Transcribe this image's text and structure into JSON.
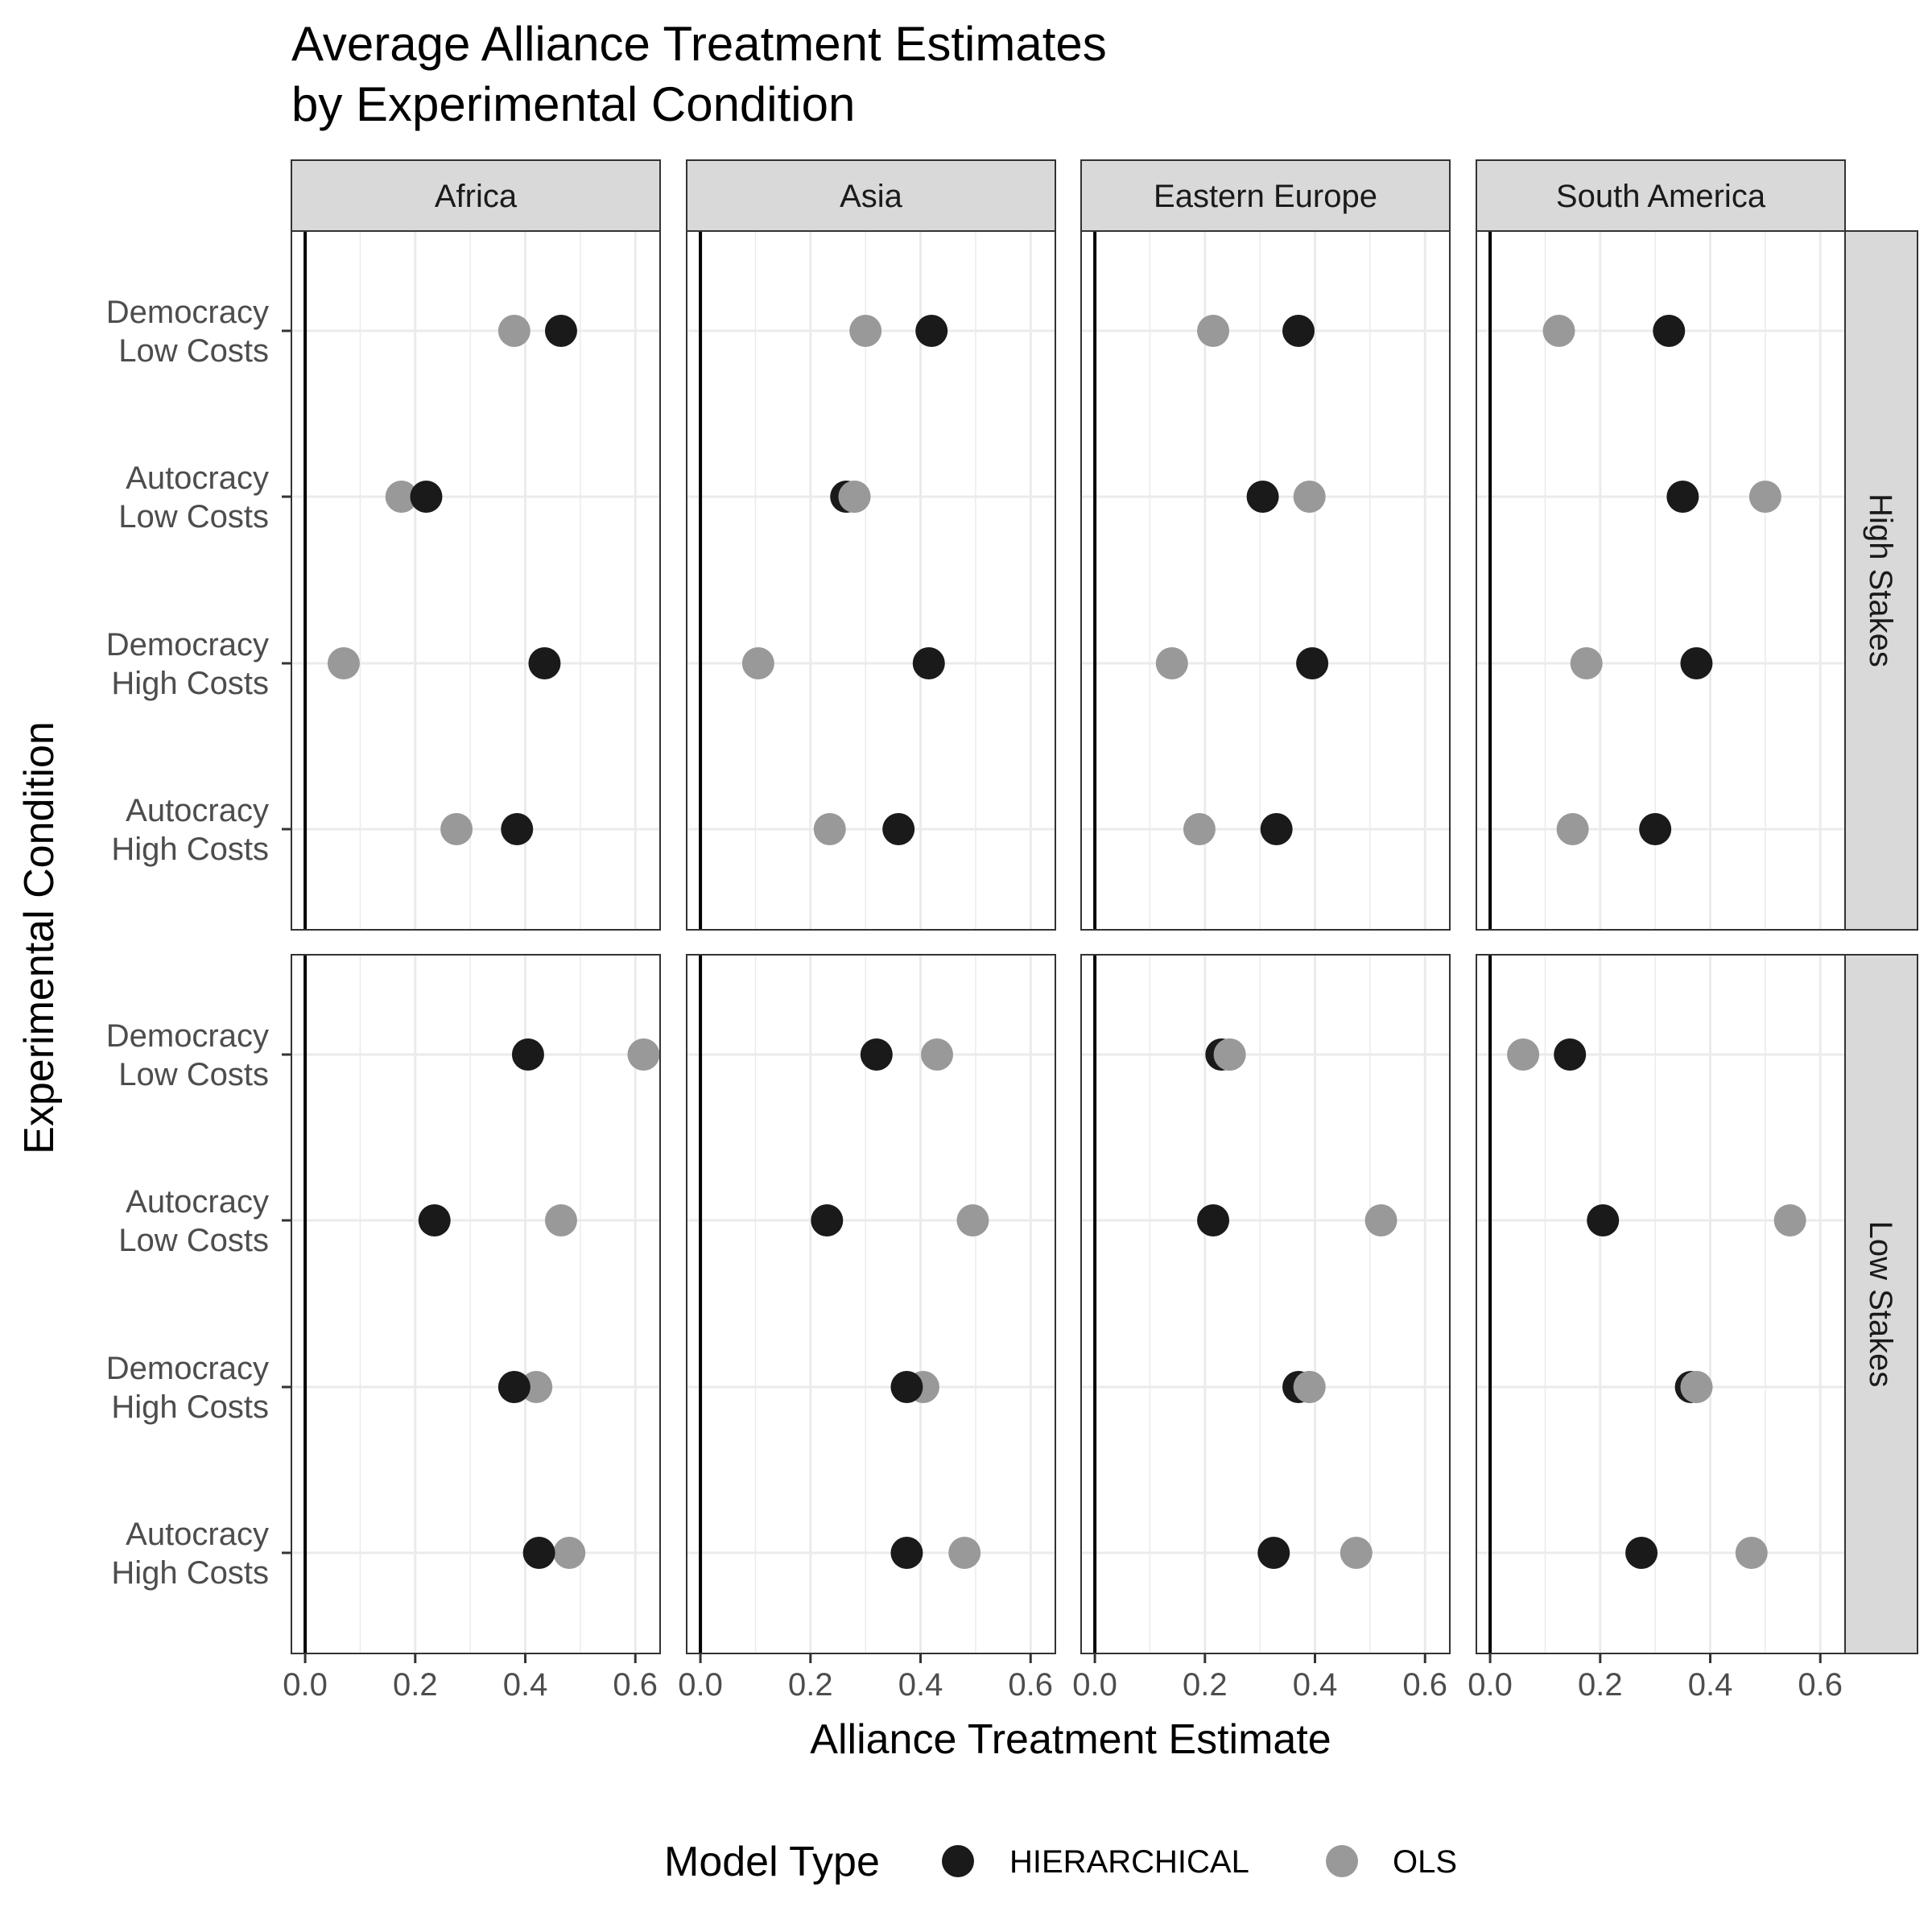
{
  "title_lines": [
    "Average Alliance Treatment Estimates",
    "by Experimental Condition"
  ],
  "chart_data": {
    "type": "scatter",
    "title": "Average Alliance Treatment Estimates by Experimental Condition",
    "xlabel": "Alliance Treatment Estimate",
    "ylabel": "Experimental Condition",
    "xlim": [
      -0.025,
      0.645
    ],
    "x_ticks": [
      "0.0",
      "0.2",
      "0.4",
      "0.6"
    ],
    "x_tick_values": [
      0,
      0.2,
      0.4,
      0.6
    ],
    "grid": true,
    "column_facets": [
      "Africa",
      "Asia",
      "Eastern Europe",
      "South America"
    ],
    "row_facets": [
      "High Stakes",
      "Low Stakes"
    ],
    "categories": [
      [
        "Democracy",
        "Low Costs"
      ],
      [
        "Autocracy",
        "Low Costs"
      ],
      [
        "Democracy",
        "High Costs"
      ],
      [
        "Autocracy",
        "High Costs"
      ]
    ],
    "legend": {
      "title": "Model Type",
      "position": "bottom",
      "entries": [
        {
          "name": "HIERARCHICAL",
          "color": "#1a1a1a"
        },
        {
          "name": "OLS",
          "color": "#999999"
        }
      ]
    },
    "panels": [
      {
        "region": "Africa",
        "stakes": "High Stakes",
        "hierarchical": [
          0.465,
          0.22,
          0.435,
          0.385
        ],
        "ols": [
          0.38,
          0.175,
          0.07,
          0.275
        ]
      },
      {
        "region": "Asia",
        "stakes": "High Stakes",
        "hierarchical": [
          0.42,
          0.265,
          0.415,
          0.36
        ],
        "ols": [
          0.3,
          0.28,
          0.105,
          0.235
        ]
      },
      {
        "region": "Eastern Europe",
        "stakes": "High Stakes",
        "hierarchical": [
          0.37,
          0.305,
          0.395,
          0.33
        ],
        "ols": [
          0.215,
          0.39,
          0.14,
          0.19
        ]
      },
      {
        "region": "South America",
        "stakes": "High Stakes",
        "hierarchical": [
          0.325,
          0.35,
          0.375,
          0.3
        ],
        "ols": [
          0.125,
          0.5,
          0.175,
          0.15
        ]
      },
      {
        "region": "Africa",
        "stakes": "Low Stakes",
        "hierarchical": [
          0.405,
          0.235,
          0.38,
          0.425
        ],
        "ols": [
          0.615,
          0.465,
          0.42,
          0.48
        ]
      },
      {
        "region": "Asia",
        "stakes": "Low Stakes",
        "hierarchical": [
          0.32,
          0.23,
          0.375,
          0.375
        ],
        "ols": [
          0.43,
          0.495,
          0.405,
          0.48
        ]
      },
      {
        "region": "Eastern Europe",
        "stakes": "Low Stakes",
        "hierarchical": [
          0.23,
          0.215,
          0.37,
          0.325
        ],
        "ols": [
          0.245,
          0.52,
          0.39,
          0.475
        ]
      },
      {
        "region": "South America",
        "stakes": "Low Stakes",
        "hierarchical": [
          0.145,
          0.205,
          0.365,
          0.275
        ],
        "ols": [
          0.06,
          0.545,
          0.375,
          0.475
        ]
      }
    ]
  }
}
